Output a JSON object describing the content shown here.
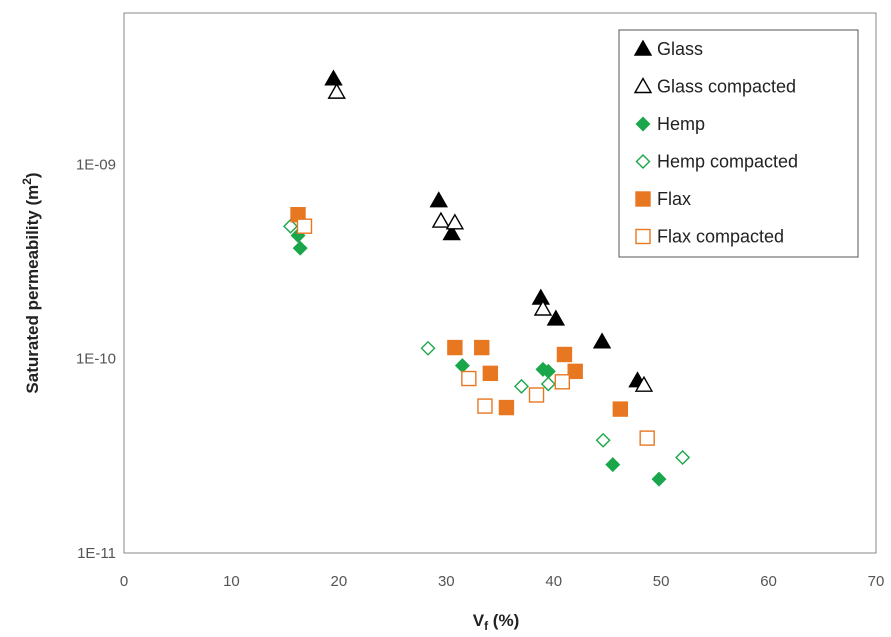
{
  "chart_data": {
    "type": "scatter",
    "xlabel": {
      "main": "V",
      "sub": "f",
      "rest": " (%)"
    },
    "ylabel": {
      "main": "Saturated permeability (m",
      "sup": "2",
      "rest": ")"
    },
    "xlim": [
      0,
      70
    ],
    "ylim": [
      1e-11,
      6e-09
    ],
    "yscale": "log",
    "x_ticks": [
      "0",
      "10",
      "20",
      "30",
      "40",
      "50",
      "60",
      "70"
    ],
    "y_ticks": [
      "1E-11",
      "1E-10",
      "1E-09"
    ],
    "grid": false,
    "legend_position": "top-right",
    "series": [
      {
        "name": "Glass",
        "marker": "triangle",
        "filled": true,
        "color": "#000000",
        "points": [
          [
            19.5,
            2.75e-09
          ],
          [
            29.3,
            6.5e-10
          ],
          [
            30.5,
            4.4e-10
          ],
          [
            38.8,
            2.05e-10
          ],
          [
            40.2,
            1.6e-10
          ],
          [
            44.5,
            1.22e-10
          ],
          [
            47.8,
            7.7e-11
          ]
        ]
      },
      {
        "name": "Glass compacted",
        "marker": "triangle",
        "filled": false,
        "color": "#000000",
        "points": [
          [
            19.8,
            2.35e-09
          ],
          [
            29.5,
            5.1e-10
          ],
          [
            30.8,
            5e-10
          ],
          [
            39.0,
            1.8e-10
          ],
          [
            48.4,
            7.3e-11
          ]
        ]
      },
      {
        "name": "Hemp",
        "marker": "diamond",
        "filled": true,
        "color": "#1aa64a",
        "points": [
          [
            16.2,
            4.3e-10
          ],
          [
            16.4,
            3.7e-10
          ],
          [
            31.5,
            9.2e-11
          ],
          [
            39.0,
            8.8e-11
          ],
          [
            39.5,
            8.6e-11
          ],
          [
            45.5,
            2.85e-11
          ],
          [
            49.8,
            2.4e-11
          ]
        ]
      },
      {
        "name": "Hemp compacted",
        "marker": "diamond",
        "filled": false,
        "color": "#1aa64a",
        "points": [
          [
            15.5,
            4.8e-10
          ],
          [
            28.3,
            1.13e-10
          ],
          [
            37.0,
            7.2e-11
          ],
          [
            39.5,
            7.4e-11
          ],
          [
            44.6,
            3.8e-11
          ],
          [
            52.0,
            3.1e-11
          ]
        ]
      },
      {
        "name": "Flax",
        "marker": "square",
        "filled": true,
        "color": "#e87722",
        "points": [
          [
            16.2,
            5.5e-10
          ],
          [
            30.8,
            1.14e-10
          ],
          [
            33.3,
            1.14e-10
          ],
          [
            34.1,
            8.4e-11
          ],
          [
            35.6,
            5.6e-11
          ],
          [
            41.0,
            1.05e-10
          ],
          [
            42.0,
            8.6e-11
          ],
          [
            46.2,
            5.5e-11
          ]
        ]
      },
      {
        "name": "Flax compacted",
        "marker": "square",
        "filled": false,
        "color": "#e87722",
        "points": [
          [
            16.8,
            4.8e-10
          ],
          [
            32.1,
            7.9e-11
          ],
          [
            33.6,
            5.7e-11
          ],
          [
            38.4,
            6.5e-11
          ],
          [
            40.8,
            7.6e-11
          ],
          [
            48.7,
            3.9e-11
          ]
        ]
      }
    ]
  }
}
